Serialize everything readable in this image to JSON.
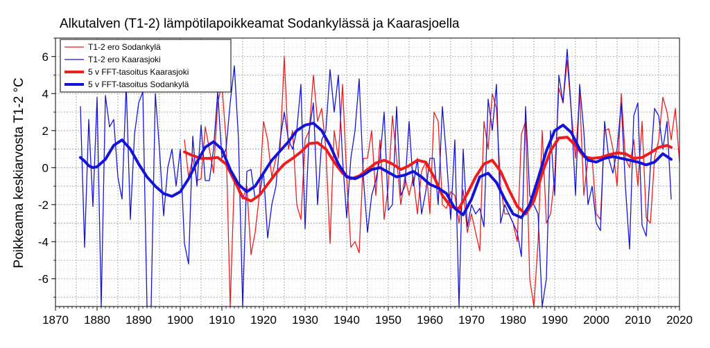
{
  "chart_data": {
    "type": "line",
    "title": "Alkutalven (T1-2) lämpötilapoikkeamat Sodankylässä ja Kaarasjoella",
    "xlabel": "",
    "ylabel": "Poikkeama keskiarvosta T1-2 °C",
    "xlim": [
      1870,
      2020
    ],
    "ylim": [
      -7.5,
      7
    ],
    "x_ticks": [
      1870,
      1880,
      1890,
      1900,
      1910,
      1920,
      1930,
      1940,
      1950,
      1960,
      1970,
      1980,
      1990,
      2000,
      2010,
      2020
    ],
    "y_ticks": [
      -6,
      -4,
      -2,
      0,
      2,
      4,
      6
    ],
    "x_tick_labels": [
      "1870",
      "1880",
      "1890",
      "1900",
      "1910",
      "1920",
      "1930",
      "1940",
      "1950",
      "1960",
      "1970",
      "1980",
      "1990",
      "2000",
      "2010",
      "2020"
    ],
    "y_tick_labels": [
      "-6",
      "-4",
      "-2",
      "0",
      "2",
      "4",
      "6"
    ],
    "grid": true,
    "legend_position": "top-left",
    "series": [
      {
        "name": "T1-2 ero Sodankylä",
        "color": "#ee1c1c",
        "style": "thin",
        "x_start": 1901,
        "values": [
          1.5,
          -0.5,
          0.5,
          -0.7,
          -0.6,
          2.2,
          1.0,
          -0.3,
          3.5,
          4.5,
          1.5,
          -7.5,
          -0.5,
          -1.3,
          -1.7,
          -1.0,
          -4.7,
          -3.5,
          -1.5,
          2.5,
          1.5,
          -0.5,
          0.5,
          1.0,
          6.0,
          1.0,
          2.0,
          -2.0,
          -2.8,
          1.5,
          2.0,
          5.0,
          2.5,
          3.2,
          1.0,
          -4.1,
          2.0,
          0.5,
          4.5,
          -0.5,
          -4.3,
          -4.0,
          -4.6,
          0.5,
          0.5,
          2.0,
          -1.5,
          1.5,
          -2.8,
          -1.0,
          2.8,
          0.5,
          -2.0,
          -0.5,
          -1.5,
          -0.5,
          -2.5,
          -0.2,
          0.3,
          -2.5,
          3.0,
          2.5,
          -2.0,
          -2.2,
          -1.3,
          -1.5,
          -3.0,
          -1.2,
          -3.5,
          -2.5,
          -3.5,
          -4.5,
          2.5,
          1.0,
          4.0,
          3.2,
          -1.0,
          -2.5,
          -2.5,
          -3.0,
          -4.0,
          1.8,
          2.5,
          -6.0,
          -7.5,
          -4.0,
          2.0,
          -3.0,
          -2.5,
          -0.5,
          4.3,
          3.5,
          5.8,
          3.0,
          0.5,
          4.0,
          -1.5,
          0.5,
          0.5,
          -2.5,
          -2.8,
          2.0,
          2.1,
          1.0,
          -1.0,
          4.0,
          0.5,
          0.0,
          1.5,
          -1.0,
          2.5,
          -2.7,
          -3.0,
          0.5,
          1.5,
          3.8,
          3.0,
          1.5,
          3.2,
          0.3
        ]
      },
      {
        "name": "T1-2 ero Kaarasjoki",
        "color": "#1414d8",
        "style": "thin",
        "x_start": 1876,
        "values": [
          3.3,
          -4.3,
          2.6,
          -2.1,
          3.8,
          -7.5,
          3.9,
          2.2,
          2.6,
          -0.5,
          -1.7,
          4.5,
          -2.8,
          1.8,
          3.5,
          4.1,
          -7.5,
          -7.5,
          4.0,
          1.0,
          -2.6,
          0.0,
          1.0,
          -1.0,
          1.0,
          -4.1,
          -5.2,
          1.7,
          -1.0,
          2.3,
          -0.7,
          -0.7,
          1.0,
          4.1,
          0.5,
          1.0,
          3.5,
          5.5,
          1.5,
          -7.5,
          -0.2,
          -0.1,
          -1.7,
          -1.5,
          -0.2,
          -3.8,
          -2.0,
          -1.0,
          1.5,
          3.0,
          1.5,
          1.0,
          2.0,
          4.5,
          -3.3,
          2.0,
          3.5,
          -2.0,
          1.5,
          2.0,
          5.3,
          3.0,
          5.0,
          0.5,
          -2.7,
          0.5,
          2.0,
          4.8,
          -0.5,
          -3.5,
          -1.5,
          -0.7,
          0.5,
          3.0,
          -2.3,
          -2.0,
          3.3,
          -1.5,
          -1.0,
          2.5,
          -1.0,
          0.5,
          -2.5,
          -1.3,
          0.5,
          0.5,
          -2.0,
          3.3,
          0.5,
          -2.8,
          1.5,
          -7.5,
          1.0,
          -3.2,
          -2.0,
          -2.5,
          -2.2,
          -3.2,
          3.7,
          2.0,
          4.5,
          -3.0,
          -2.0,
          -2.5,
          -3.0,
          -3.5,
          -4.8,
          3.3,
          -1.5,
          -2.0,
          -2.5,
          -7.5,
          -6.0,
          2.0,
          -1.5,
          5.0,
          3.5,
          6.4,
          3.0,
          -1.5,
          4.5,
          2.0,
          -2.0,
          -1.0,
          -3.0,
          -3.4,
          2.5,
          0.5,
          -0.3,
          1.0,
          3.5,
          -1.0,
          -4.4,
          2.8,
          3.5,
          -3.1,
          -3.7,
          0.0,
          3.2,
          2.8,
          1.0,
          2.5,
          -1.7
        ]
      },
      {
        "name": "5 v FFT-tasoitus Kaarasjoki",
        "color": "#ee1c1c",
        "style": "thick",
        "x": [
          1901,
          1903,
          1905,
          1907,
          1909,
          1911,
          1913,
          1915,
          1917,
          1919,
          1921,
          1923,
          1925,
          1927,
          1929,
          1931,
          1933,
          1935,
          1937,
          1939,
          1941,
          1943,
          1945,
          1947,
          1949,
          1951,
          1953,
          1955,
          1957,
          1959,
          1961,
          1963,
          1965,
          1967,
          1969,
          1971,
          1973,
          1975,
          1977,
          1979,
          1981,
          1983,
          1985,
          1987,
          1989,
          1991,
          1993,
          1995,
          1997,
          1999,
          2001,
          2003,
          2005,
          2007,
          2009,
          2011,
          2013,
          2015,
          2017,
          2018
        ],
        "values": [
          0.85,
          0.65,
          0.5,
          0.5,
          0.55,
          0.2,
          -0.7,
          -1.6,
          -1.8,
          -1.5,
          -0.9,
          -0.3,
          0.2,
          0.5,
          0.85,
          1.3,
          1.35,
          1.0,
          0.3,
          -0.3,
          -0.6,
          -0.45,
          -0.1,
          0.25,
          0.4,
          0.2,
          -0.1,
          0.1,
          0.4,
          0.3,
          -0.5,
          -1.5,
          -2.1,
          -2.2,
          -1.4,
          -0.5,
          0.2,
          0.4,
          -0.2,
          -1.2,
          -2.1,
          -2.5,
          -1.8,
          -0.3,
          0.9,
          1.6,
          1.65,
          1.2,
          0.6,
          0.5,
          0.55,
          0.7,
          0.8,
          0.75,
          0.5,
          0.55,
          0.8,
          1.1,
          1.2,
          1.1
        ]
      },
      {
        "name": "5 v FFT-tasoitus Sodankylä",
        "color": "#1414d8",
        "style": "thick",
        "x": [
          1876,
          1877,
          1878,
          1879,
          1880,
          1882,
          1884,
          1886,
          1888,
          1890,
          1892,
          1894,
          1896,
          1898,
          1900,
          1902,
          1904,
          1906,
          1908,
          1910,
          1912,
          1914,
          1916,
          1918,
          1920,
          1922,
          1924,
          1926,
          1928,
          1930,
          1932,
          1934,
          1936,
          1938,
          1940,
          1942,
          1944,
          1946,
          1948,
          1950,
          1952,
          1954,
          1956,
          1958,
          1960,
          1962,
          1964,
          1966,
          1968,
          1970,
          1972,
          1974,
          1976,
          1978,
          1980,
          1982,
          1984,
          1986,
          1988,
          1990,
          1992,
          1994,
          1996,
          1998,
          2000,
          2002,
          2004,
          2006,
          2008,
          2010,
          2012,
          2014,
          2016,
          2018
        ],
        "values": [
          0.55,
          0.35,
          0.1,
          0.0,
          0.05,
          0.45,
          1.2,
          1.5,
          1.0,
          0.2,
          -0.5,
          -1.0,
          -1.4,
          -1.55,
          -1.3,
          -0.6,
          0.3,
          1.1,
          1.4,
          1.0,
          -0.1,
          -0.9,
          -1.3,
          -1.0,
          -0.3,
          0.4,
          0.9,
          1.4,
          2.0,
          2.3,
          2.4,
          2.0,
          1.2,
          0.2,
          -0.5,
          -0.6,
          -0.4,
          -0.1,
          0.0,
          -0.25,
          -0.5,
          -0.4,
          -0.2,
          -0.5,
          -0.9,
          -1.1,
          -1.4,
          -2.2,
          -2.55,
          -1.7,
          -0.5,
          -0.3,
          -0.8,
          -1.7,
          -2.5,
          -2.7,
          -2.0,
          -0.6,
          0.9,
          2.0,
          2.3,
          1.9,
          1.0,
          0.4,
          0.3,
          0.5,
          0.6,
          0.5,
          0.4,
          0.3,
          0.15,
          0.3,
          0.75,
          0.45
        ]
      }
    ]
  }
}
